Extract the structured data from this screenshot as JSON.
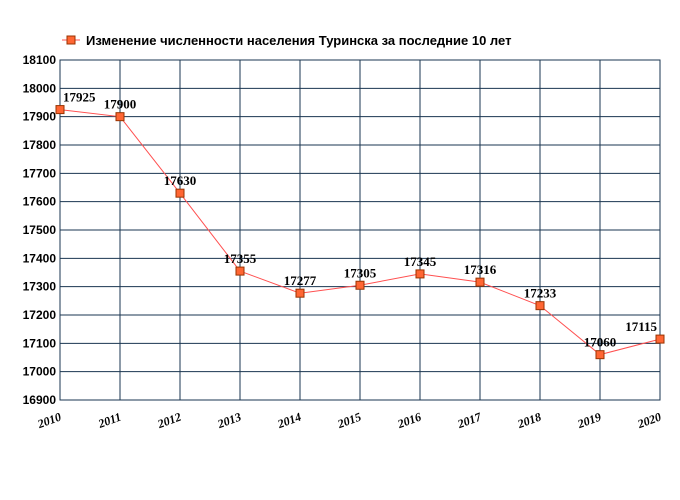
{
  "chart_data": {
    "type": "line",
    "title": "",
    "xlabel": "",
    "ylabel": "",
    "x": [
      "2010",
      "2011",
      "2012",
      "2013",
      "2014",
      "2015",
      "2016",
      "2017",
      "2018",
      "2019",
      "2020"
    ],
    "series": [
      {
        "name": "Изменение численности населения Туринска за последние 10 лет",
        "values": [
          17925,
          17900,
          17630,
          17355,
          17277,
          17305,
          17345,
          17316,
          17233,
          17060,
          17115
        ]
      }
    ],
    "ylim": [
      16900,
      18100
    ],
    "yticks": [
      16900,
      17000,
      17100,
      17200,
      17300,
      17400,
      17500,
      17600,
      17700,
      17800,
      17900,
      18000,
      18100
    ],
    "grid": true,
    "legend": "top",
    "colors": {
      "line": "#ff5050",
      "marker_fill": "#ff6633",
      "marker_stroke": "#993300",
      "grid": "#1a3550"
    }
  }
}
